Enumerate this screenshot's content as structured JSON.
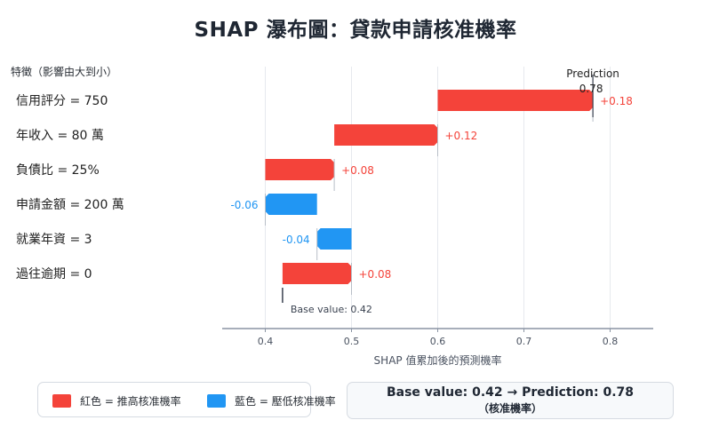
{
  "title": "SHAP 瀑布圖：貸款申請核准機率",
  "colors": {
    "positive": "#f4433a",
    "negative": "#2196f3",
    "axis": "#8a94a3",
    "grid": "#e6e9ee"
  },
  "chart_data": {
    "type": "waterfall",
    "title": "SHAP 瀑布圖：貸款申請核准機率",
    "feature_header": "特徵（影響由大到小）",
    "xlabel": "SHAP 值累加後的預測機率",
    "xlim": [
      0.35,
      0.85
    ],
    "xticks": [
      0.4,
      0.5,
      0.6,
      0.7,
      0.8
    ],
    "xtick_labels": [
      "0.4",
      "0.5",
      "0.6",
      "0.7",
      "0.8"
    ],
    "base_value": 0.42,
    "base_label": "Base value: 0.42",
    "prediction": 0.78,
    "prediction_label": "Prediction",
    "prediction_value_label": "0.78",
    "features": [
      {
        "label": "信用評分 = 750",
        "value": 0.18,
        "value_label": "+0.18"
      },
      {
        "label": "年收入 = 80 萬",
        "value": 0.12,
        "value_label": "+0.12"
      },
      {
        "label": "負債比 = 25%",
        "value": 0.08,
        "value_label": "+0.08"
      },
      {
        "label": "申請金額 = 200 萬",
        "value": -0.06,
        "value_label": "-0.06"
      },
      {
        "label": "就業年資 = 3",
        "value": -0.04,
        "value_label": "-0.04"
      },
      {
        "label": "過往逾期 = 0",
        "value": 0.08,
        "value_label": "+0.08"
      }
    ],
    "grid": true
  },
  "legend": {
    "positive_label": "紅色 = 推高核准機率",
    "negative_label": "藍色 = 壓低核准機率"
  },
  "summary": {
    "line1": "Base value: 0.42 → Prediction: 0.78",
    "line2": "（核准機率）"
  }
}
